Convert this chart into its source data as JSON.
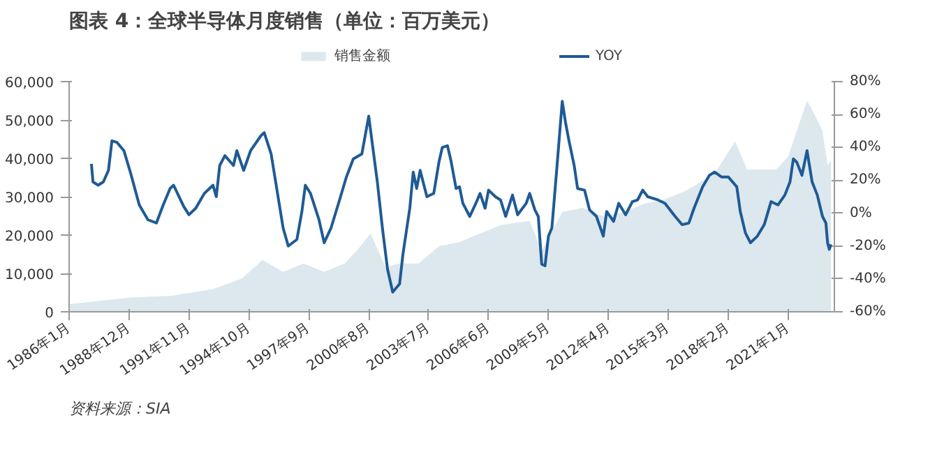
{
  "chart_data": {
    "type": "line",
    "title": "图表 4：全球半导体月度销售（单位：百万美元）",
    "xlim": [
      "1986-01",
      "2023-04"
    ],
    "xticks": [
      {
        "value": "1986-01",
        "label": "1986年1月"
      },
      {
        "value": "1988-12",
        "label": "1988年12月"
      },
      {
        "value": "1991-11",
        "label": "1991年11月"
      },
      {
        "value": "1994-10",
        "label": "1994年10月"
      },
      {
        "value": "1997-09",
        "label": "1997年9月"
      },
      {
        "value": "2000-08",
        "label": "2000年8月"
      },
      {
        "value": "2003-07",
        "label": "2003年7月"
      },
      {
        "value": "2006-06",
        "label": "2006年6月"
      },
      {
        "value": "2009-05",
        "label": "2009年5月"
      },
      {
        "value": "2012-04",
        "label": "2012年4月"
      },
      {
        "value": "2015-03",
        "label": "2015年3月"
      },
      {
        "value": "2018-02",
        "label": "2018年2月"
      },
      {
        "value": "2021-01",
        "label": "2021年1月"
      }
    ],
    "ylim": [
      0,
      60000
    ],
    "yticks": [
      {
        "value": 0,
        "label": "0"
      },
      {
        "value": 10000,
        "label": "10,000"
      },
      {
        "value": 20000,
        "label": "20,000"
      },
      {
        "value": 30000,
        "label": "30,000"
      },
      {
        "value": 40000,
        "label": "40,000"
      },
      {
        "value": 50000,
        "label": "50,000"
      },
      {
        "value": 60000,
        "label": "60,000"
      }
    ],
    "y2lim": [
      -60,
      80
    ],
    "y2ticks": [
      {
        "value": -60,
        "label": "-60%"
      },
      {
        "value": -40,
        "label": "-40%"
      },
      {
        "value": -20,
        "label": "-20%"
      },
      {
        "value": 0,
        "label": "0%"
      },
      {
        "value": 20,
        "label": "20%"
      },
      {
        "value": 40,
        "label": "40%"
      },
      {
        "value": 60,
        "label": "60%"
      },
      {
        "value": 80,
        "label": "80%"
      }
    ],
    "legend": "top",
    "grid": false,
    "annotations": [
      "资料来源：SIA"
    ],
    "series": [
      {
        "name": "销售金额",
        "type": "area",
        "color": "#dce8ee",
        "x": [
          "1986-01",
          "1988-12",
          "1991-01",
          "1993-01",
          "1994-06",
          "1995-06",
          "1996-06",
          "1997-06",
          "1998-06",
          "1999-06",
          "2000-01",
          "2000-09",
          "2001-06",
          "2002-01",
          "2003-01",
          "2004-01",
          "2005-01",
          "2006-01",
          "2007-01",
          "2008-06",
          "2009-01",
          "2010-01",
          "2011-01",
          "2012-01",
          "2013-01",
          "2014-01",
          "2015-01",
          "2016-01",
          "2017-06",
          "2018-06",
          "2019-01",
          "2020-06",
          "2021-01",
          "2021-06",
          "2021-12",
          "2022-03",
          "2022-09",
          "2022-12",
          "2023-02"
        ],
        "values": [
          2000,
          3700,
          4200,
          5900,
          8700,
          13500,
          10400,
          12600,
          10400,
          12600,
          15900,
          20400,
          11500,
          12600,
          12600,
          17100,
          18200,
          20400,
          22600,
          23700,
          15900,
          26000,
          27100,
          24900,
          26000,
          28200,
          29300,
          31500,
          36000,
          44400,
          37100,
          37100,
          40500,
          47200,
          55000,
          52700,
          47200,
          38200,
          39300
        ]
      },
      {
        "name": "YOY",
        "type": "line",
        "axis": "y2",
        "color": "#1f5a96",
        "x": [
          "1987-02",
          "1987-03",
          "1987-06",
          "1987-09",
          "1987-12",
          "1988-02",
          "1988-05",
          "1988-09",
          "1989-01",
          "1989-06",
          "1989-11",
          "1990-04",
          "1990-08",
          "1990-12",
          "1991-02",
          "1991-08",
          "1991-11",
          "1992-03",
          "1992-08",
          "1993-01",
          "1993-03",
          "1993-05",
          "1993-08",
          "1994-01",
          "1994-03",
          "1994-07",
          "1994-11",
          "1995-05",
          "1995-07",
          "1995-11",
          "1996-06",
          "1996-09",
          "1997-02",
          "1997-05",
          "1997-07",
          "1997-10",
          "1998-03",
          "1998-06",
          "1998-10",
          "1999-03",
          "1999-07",
          "1999-11",
          "2000-04",
          "2000-08",
          "2000-10",
          "2001-01",
          "2001-04",
          "2001-07",
          "2001-10",
          "2002-02",
          "2002-04",
          "2002-08",
          "2002-10",
          "2002-12",
          "2003-02",
          "2003-06",
          "2003-10",
          "2004-01",
          "2004-03",
          "2004-06",
          "2004-08",
          "2004-11",
          "2005-01",
          "2005-03",
          "2005-07",
          "2005-11",
          "2006-01",
          "2006-04",
          "2006-06",
          "2006-10",
          "2007-01",
          "2007-04",
          "2007-08",
          "2007-11",
          "2008-04",
          "2008-06",
          "2008-09",
          "2008-11",
          "2009-01",
          "2009-03",
          "2009-05",
          "2009-07",
          "2009-10",
          "2010-01",
          "2010-03",
          "2010-05",
          "2010-08",
          "2010-10",
          "2011-02",
          "2011-05",
          "2011-09",
          "2012-01",
          "2012-03",
          "2012-07",
          "2012-10",
          "2013-02",
          "2013-06",
          "2013-09",
          "2013-12",
          "2014-03",
          "2014-09",
          "2015-01",
          "2015-07",
          "2015-11",
          "2016-03",
          "2016-06",
          "2016-11",
          "2017-03",
          "2017-06",
          "2017-10",
          "2018-02",
          "2018-07",
          "2018-09",
          "2018-12",
          "2019-03",
          "2019-07",
          "2019-11",
          "2020-03",
          "2020-07",
          "2020-11",
          "2021-02",
          "2021-04",
          "2021-06",
          "2021-09",
          "2021-12",
          "2022-03",
          "2022-06",
          "2022-09",
          "2022-11",
          "2022-12",
          "2023-01",
          "2023-02"
        ],
        "values": [
          30,
          19,
          17,
          19,
          26,
          44,
          43,
          38,
          24,
          5,
          -4,
          -6,
          5,
          15,
          17,
          4,
          -1,
          3,
          12,
          17,
          10,
          29,
          35,
          29,
          38,
          26,
          38,
          47,
          49,
          36,
          -9,
          -20,
          -16,
          1,
          17,
          12,
          -4,
          -18,
          -9,
          8,
          22,
          33,
          36,
          59,
          43,
          19,
          -9,
          -34,
          -48,
          -43,
          -25,
          3,
          25,
          15,
          26,
          10,
          12,
          31,
          40,
          41,
          32,
          15,
          16,
          6,
          -2,
          7,
          12,
          3,
          14,
          10,
          8,
          -2,
          11,
          -1,
          6,
          12,
          2,
          -2,
          -31,
          -32,
          -14,
          -9,
          29,
          68,
          55,
          44,
          29,
          15,
          14,
          2,
          -2,
          -14,
          1,
          -5,
          6,
          -1,
          7,
          8,
          14,
          10,
          8,
          6,
          -2,
          -7,
          -6,
          3,
          16,
          23,
          25,
          22,
          22,
          16,
          1,
          -12,
          -18,
          -14,
          -7,
          7,
          5,
          11,
          19,
          33,
          31,
          23,
          38,
          19,
          11,
          -2,
          -6,
          -18,
          -22,
          -19
        ]
      }
    ]
  }
}
